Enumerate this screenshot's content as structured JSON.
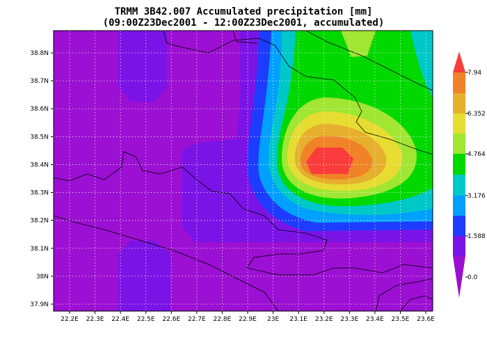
{
  "title": {
    "line1": "TRMM 3B42.007 Accumulated precipitation [mm]",
    "line2": "(09:00Z23Dec2001 - 12:00Z23Dec2001, accumulated)"
  },
  "x_axis": {
    "labels": [
      "22.2E",
      "22.3E",
      "22.4E",
      "22.5E",
      "22.6E",
      "22.7E",
      "22.8E",
      "22.9E",
      "23E",
      "23.1E",
      "23.2E",
      "23.3E",
      "23.4E",
      "23.5E",
      "23.6E"
    ]
  },
  "y_axis": {
    "labels": [
      "38.8N",
      "38.7N",
      "38.6N",
      "38.5N",
      "38.4N",
      "38.3N",
      "38.2N",
      "38.1N",
      "38N",
      "37.9N"
    ]
  },
  "colorbar": {
    "labels": [
      "7.94",
      "6.352",
      "4.764",
      "3.176",
      "1.588",
      "0.0"
    ]
  }
}
